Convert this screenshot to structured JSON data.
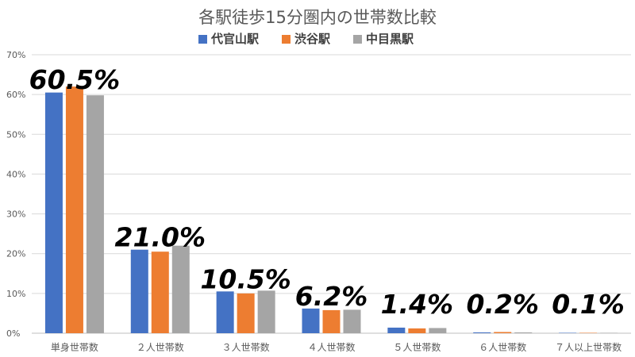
{
  "chart_data": {
    "type": "bar",
    "title": "各駅徒歩15分圏内の世帯数比較",
    "categories": [
      "単身世帯数",
      "２人世帯数",
      "３人世帯数",
      "４人世帯数",
      "５人世帯数",
      "６人世帯数",
      "７人以上世帯数"
    ],
    "series": [
      {
        "name": "代官山駅",
        "color": "#4472c4",
        "values": [
          60.5,
          21.0,
          10.5,
          6.2,
          1.4,
          0.2,
          0.1
        ]
      },
      {
        "name": "渋谷駅",
        "color": "#ed7d31",
        "values": [
          62.0,
          20.5,
          10.0,
          5.8,
          1.2,
          0.3,
          0.1
        ]
      },
      {
        "name": "中目黒駅",
        "color": "#a5a5a5",
        "values": [
          59.8,
          22.0,
          10.7,
          5.9,
          1.3,
          0.2,
          0.1
        ]
      }
    ],
    "annotations": [
      "60.5%",
      "21.0%",
      "10.5%",
      "6.2%",
      "1.4%",
      "0.2%",
      "0.1%"
    ],
    "ylim": [
      0,
      70
    ],
    "yticks": [
      "0%",
      "10%",
      "20%",
      "30%",
      "40%",
      "50%",
      "60%",
      "70%"
    ],
    "grid": true,
    "legend_position": "top"
  }
}
